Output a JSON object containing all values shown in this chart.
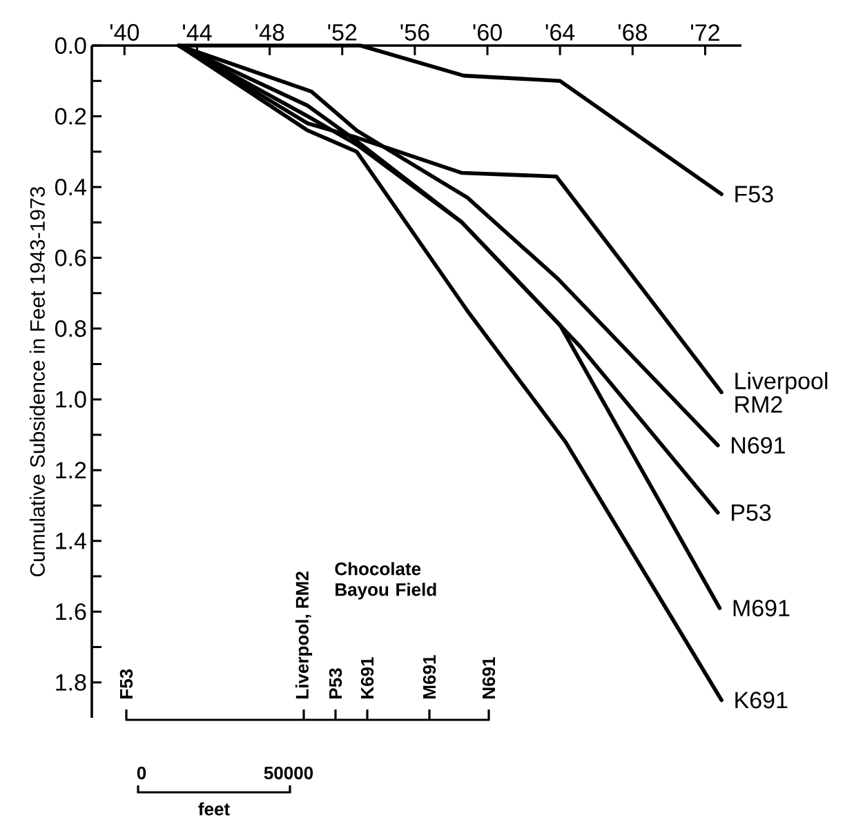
{
  "chart_data": {
    "type": "line",
    "ylabel": "Cumulative Subsidence in Feet 1943-1973",
    "xlim": [
      1938.2,
      1974.0
    ],
    "ylim": [
      1.9,
      0
    ],
    "xticks": [
      {
        "value": 1940,
        "label": "'40"
      },
      {
        "value": 1944,
        "label": "'44"
      },
      {
        "value": 1948,
        "label": "'48"
      },
      {
        "value": 1952,
        "label": "'52"
      },
      {
        "value": 1956,
        "label": "'56"
      },
      {
        "value": 1960,
        "label": "'60"
      },
      {
        "value": 1964,
        "label": "'64"
      },
      {
        "value": 1968,
        "label": "'68"
      },
      {
        "value": 1972,
        "label": "'72"
      }
    ],
    "yticks": [
      {
        "value": 0,
        "label": "0.0"
      },
      {
        "value": 0.1,
        "label": null
      },
      {
        "value": 0.2,
        "label": "0.2"
      },
      {
        "value": 0.3,
        "label": null
      },
      {
        "value": 0.4,
        "label": "0.4"
      },
      {
        "value": 0.5,
        "label": null
      },
      {
        "value": 0.6,
        "label": "0.6"
      },
      {
        "value": 0.7,
        "label": null
      },
      {
        "value": 0.8,
        "label": "0.8"
      },
      {
        "value": 0.9,
        "label": null
      },
      {
        "value": 1.0,
        "label": "1.0"
      },
      {
        "value": 1.1,
        "label": null
      },
      {
        "value": 1.2,
        "label": "1.2"
      },
      {
        "value": 1.3,
        "label": null
      },
      {
        "value": 1.4,
        "label": "1.4"
      },
      {
        "value": 1.5,
        "label": null
      },
      {
        "value": 1.6,
        "label": "1.6"
      },
      {
        "value": 1.7,
        "label": null
      },
      {
        "value": 1.8,
        "label": "1.8"
      }
    ],
    "series": [
      {
        "name": "F53",
        "color": "#000000",
        "x": [
          1943,
          1953,
          1958.7,
          1964,
          1972.9
        ],
        "values": [
          0,
          0,
          0.085,
          0.1,
          0.42
        ]
      },
      {
        "name": "Liverpool RM2",
        "color": "#000000",
        "x": [
          1943,
          1950.1,
          1952.8,
          1958.6,
          1963.8,
          1972.9
        ],
        "values": [
          0,
          0.22,
          0.26,
          0.36,
          0.37,
          0.98
        ]
      },
      {
        "name": "N691",
        "color": "#000000",
        "x": [
          1943,
          1950.3,
          1952.8,
          1958.9,
          1963.9,
          1972.7
        ],
        "values": [
          0,
          0.13,
          0.24,
          0.43,
          0.66,
          1.13
        ]
      },
      {
        "name": "P53",
        "color": "#000000",
        "x": [
          1943,
          1950.1,
          1952.8,
          1958.6,
          1965.1,
          1972.7
        ],
        "values": [
          0,
          0.17,
          0.27,
          0.5,
          0.85,
          1.32
        ]
      },
      {
        "name": "M691",
        "color": "#000000",
        "x": [
          1943,
          1950.1,
          1952.8,
          1958.6,
          1964.0,
          1972.8
        ],
        "values": [
          0,
          0.2,
          0.28,
          0.5,
          0.79,
          1.59
        ]
      },
      {
        "name": "K691",
        "color": "#000000",
        "x": [
          1943,
          1950.1,
          1952.8,
          1958.9,
          1964.3,
          1972.9
        ],
        "values": [
          0,
          0.24,
          0.3,
          0.75,
          1.12,
          1.85
        ]
      }
    ],
    "annotations": [
      "F53",
      "Liverpool, RM2",
      "P53",
      "K691",
      "M691",
      "N691",
      "Chocolate Bayou Field",
      "0",
      "50000",
      "feet"
    ]
  }
}
